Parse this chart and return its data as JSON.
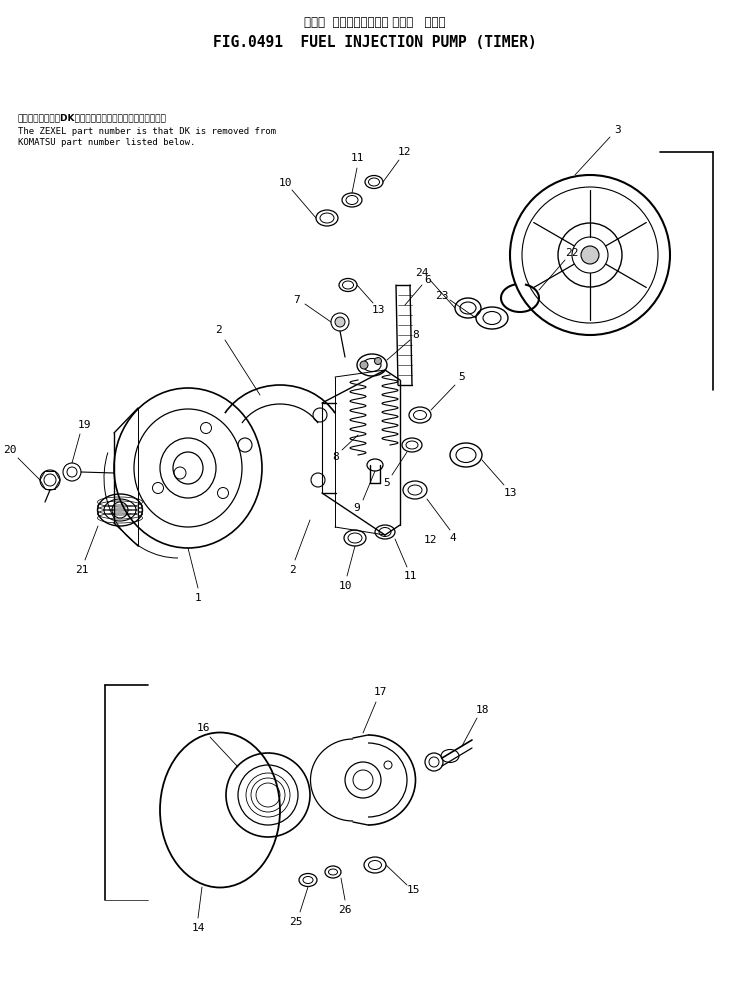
{
  "title_japanese": "フェル  インジェクション ポンプ   タイマ",
  "title_english": "FIG.0491  FUEL INJECTION PUMP (TIMER)",
  "note_japanese": "品番のメーカ記号DKを除いたものがゼクセルの品番です。",
  "note_english1": "The ZEXEL part number is that DK is removed from",
  "note_english2": "KOMATSU part number listed below.",
  "bg_color": "#ffffff",
  "line_color": "#000000",
  "fig_width": 7.41,
  "fig_height": 9.82
}
